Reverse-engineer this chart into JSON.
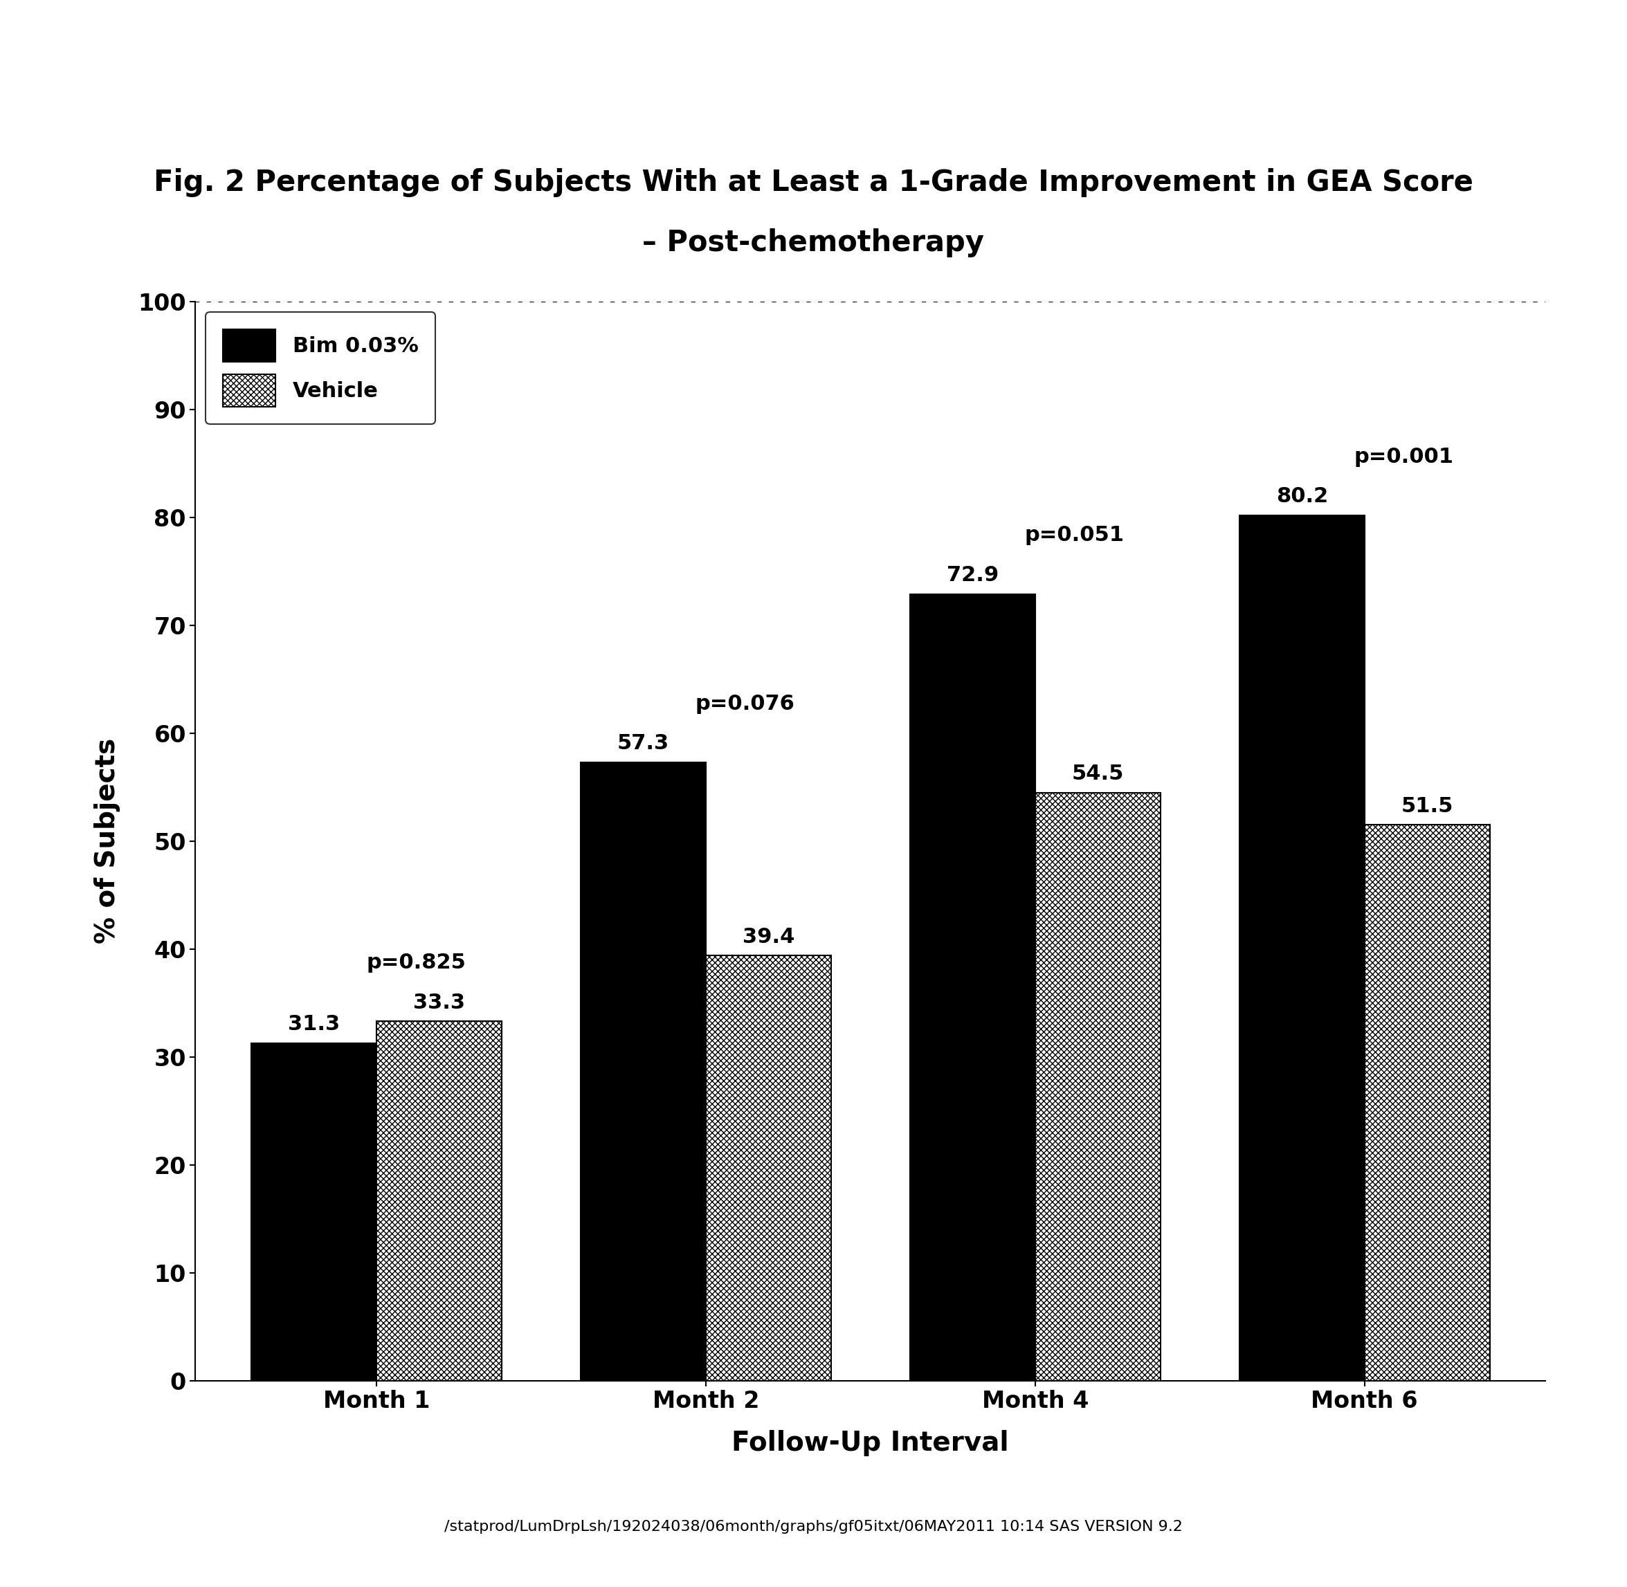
{
  "title_line1": "Fig. 2 Percentage of Subjects With at Least a 1-Grade Improvement in GEA Score",
  "title_line2": "– Post-chemotherapy",
  "xlabel": "Follow-Up Interval",
  "ylabel": "% of Subjects",
  "footer": "/statprod/LumDrpLsh/192024038/06month/graphs/gf05itxt/06MAY2011 10:14 SAS VERSION 9.2",
  "categories": [
    "Month 1",
    "Month 2",
    "Month 4",
    "Month 6"
  ],
  "bim_values": [
    31.3,
    57.3,
    72.9,
    80.2
  ],
  "vehicle_values": [
    33.3,
    39.4,
    54.5,
    51.5
  ],
  "p_values": [
    "p=0.825",
    "p=0.076",
    "p=0.051",
    "p=0.001"
  ],
  "bim_color": "#000000",
  "ylim": [
    0,
    100
  ],
  "yticks": [
    0,
    10,
    20,
    30,
    40,
    50,
    60,
    70,
    80,
    90,
    100
  ],
  "legend_labels": [
    "Bim 0.03%",
    "Vehicle"
  ],
  "bar_width": 0.38,
  "title_fontsize": 30,
  "axis_label_fontsize": 28,
  "tick_fontsize": 24,
  "bar_label_fontsize": 22,
  "pvalue_fontsize": 22,
  "legend_fontsize": 22,
  "footer_fontsize": 16,
  "background_color": "#ffffff"
}
